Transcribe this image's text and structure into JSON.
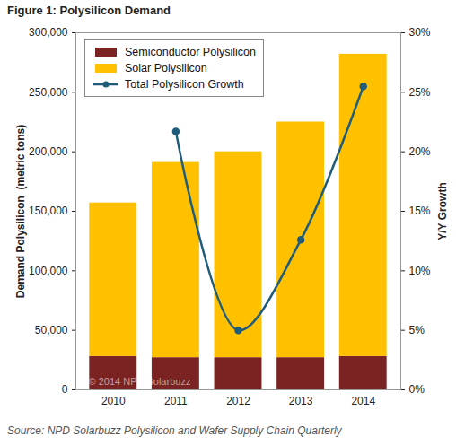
{
  "chart_data": {
    "type": "bar",
    "title": "Figure 1: Polysilicon Demand",
    "source": "Source: NPD Solarbuzz Polysilicon and Wafer Supply Chain Quarterly",
    "annotations": [
      "© 2014 NPD Solarbuzz"
    ],
    "categories": [
      "2010",
      "2011",
      "2012",
      "2013",
      "2014"
    ],
    "stacked": true,
    "grid": false,
    "legend": "upper left",
    "ylabel": "Demand Polysilicon  (metric tons)",
    "y2label": "Y/Y Growth",
    "ylim": [
      0,
      300000
    ],
    "yticks": [
      0,
      {
        "value": 50000,
        "label": "50,000"
      },
      {
        "value": 100000,
        "label": "100,000"
      },
      {
        "value": 150000,
        "label": "150,000"
      },
      {
        "value": 200000,
        "label": "200,000"
      },
      {
        "value": 250000,
        "label": "250,000"
      },
      {
        "value": 300000,
        "label": "300,000"
      }
    ],
    "y2lim": [
      0,
      30
    ],
    "y2ticks": [
      {
        "value": 0,
        "label": "0%"
      },
      {
        "value": 5,
        "label": "5%"
      },
      {
        "value": 10,
        "label": "10%"
      },
      {
        "value": 15,
        "label": "15%"
      },
      {
        "value": 20,
        "label": "20%"
      },
      {
        "value": 25,
        "label": "25%"
      },
      {
        "value": 30,
        "label": "30%"
      }
    ],
    "series": [
      {
        "name": "Semiconductor Polysilicon",
        "type": "bar",
        "color": "#7b2323",
        "values": [
          28000,
          27000,
          27000,
          27000,
          28000
        ]
      },
      {
        "name": "Solar Polysilicon",
        "type": "bar",
        "color": "#ffc000",
        "values": [
          129000,
          164000,
          173000,
          198000,
          254000
        ]
      },
      {
        "name": "Total Polysilicon Growth",
        "type": "line",
        "axis": "y2",
        "marker": "circle",
        "line_style": "solid",
        "color": "#1f5c7a",
        "values": [
          null,
          21.7,
          5.0,
          12.6,
          25.5
        ]
      }
    ]
  }
}
